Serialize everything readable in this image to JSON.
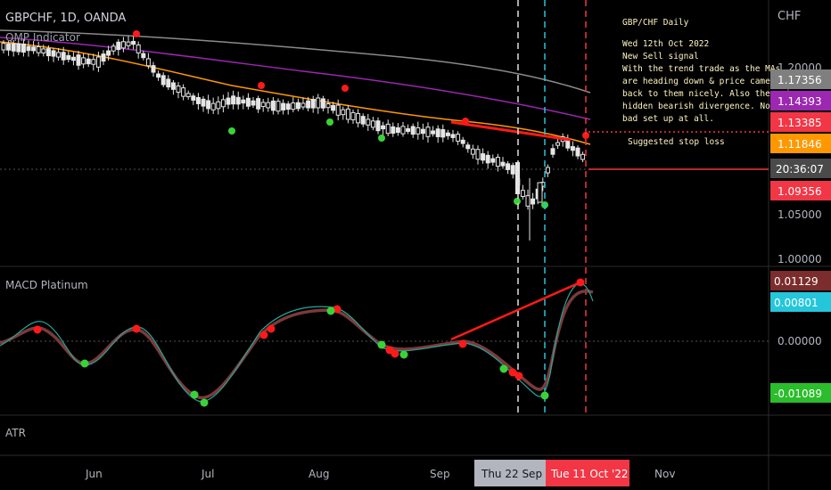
{
  "header": {
    "symbol": "GBPCHF, 1D, OANDA",
    "indicator": "QMP Indicator"
  },
  "axis": {
    "currency": "CHF",
    "price_ticks": [
      "1.20000",
      "1.05000",
      "1.00000"
    ],
    "macd_tick": "0.00000",
    "month_labels": [
      "Jun",
      "Jul",
      "Aug",
      "Sep",
      "Nov"
    ],
    "date_badge_1": "Thu 22 Sep '22",
    "date_badge_2": "Tue 11 Oct '22",
    "countdown": "20:36:07"
  },
  "price_badges": [
    {
      "label": "1.17356",
      "color": "#7f7f7f"
    },
    {
      "label": "1.14393",
      "color": "#9c27b0"
    },
    {
      "label": "1.13385",
      "color": "#f23645"
    },
    {
      "label": "1.11846",
      "color": "#ff9800"
    },
    {
      "label": "1.09356",
      "color": "#f23645"
    }
  ],
  "macd_badges": [
    {
      "label": "0.01129",
      "color": "#7b2d2d"
    },
    {
      "label": "0.00801",
      "color": "#26c6da"
    },
    {
      "label": "-0.01089",
      "color": "#2bbd2b"
    }
  ],
  "panes": {
    "macd": "MACD Platinum",
    "atr": "ATR"
  },
  "annotation": {
    "title": "GBP/CHF Daily",
    "date": "Wed 12th Oct 2022",
    "signal": "New Sell signal",
    "lines": [
      "With the trend trade as the MAs",
      "are heading down & price came",
      "back to them nicely. Also there is",
      "hidden bearish divergence.  Not a",
      "bad set up at all."
    ],
    "stop_label": "Suggested stop loss"
  },
  "chart_data": {
    "type": "candlestick",
    "symbol": "GBPCHF",
    "timeframe": "1D",
    "y_axis_ticks": [
      1.0,
      1.05,
      1.2
    ],
    "ma_values_latest": {
      "gray": 1.17356,
      "purple": 1.14393,
      "orange": 1.11846
    },
    "stop_loss": 1.13385,
    "last_price": 1.09356,
    "macd_latest": {
      "macd": 0.01129,
      "signal": 0.00801,
      "histogram": -0.01089
    },
    "vertical_markers": [
      "Thu 22 Sep '22",
      "Tue 11 Oct '22"
    ]
  }
}
